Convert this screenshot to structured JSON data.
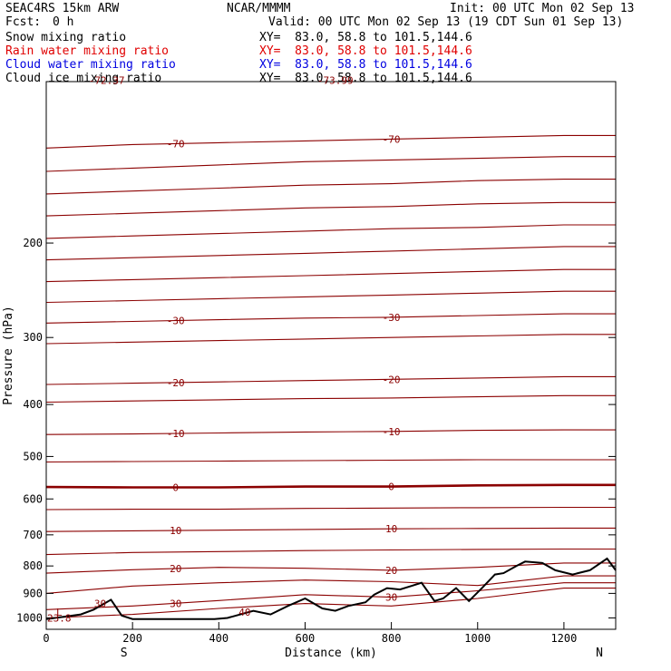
{
  "header": {
    "model": "SEAC4RS 15km ARW",
    "org": "NCAR/MMMM",
    "init": "Init: 00 UTC Mon 02 Sep 13",
    "fcst_label": "Fcst:",
    "fcst_value": "0 h",
    "valid": "Valid: 00 UTC Mon 02 Sep 13 (19 CDT Sun 01 Sep 13)"
  },
  "legend": [
    {
      "label": "Snow mixing ratio",
      "xy": "XY=  83.0, 58.8 to 101.5,144.6",
      "color": "#000000"
    },
    {
      "label": "Rain water mixing ratio",
      "xy": "XY=  83.0, 58.8 to 101.5,144.6",
      "color": "#e00000"
    },
    {
      "label": "Cloud water mixing ratio",
      "xy": "XY=  83.0, 58.8 to 101.5,144.6",
      "color": "#0000e0"
    },
    {
      "label": "Cloud ice mixing ratio",
      "xy": "XY=  83.0, 58.8 to 101.5,144.6",
      "color": "#000000"
    }
  ],
  "colors": {
    "contour": "#8b0000",
    "terrain": "#000000",
    "axis": "#000000"
  },
  "chart_data": {
    "type": "line",
    "xlabel": "Distance (km)",
    "ylabel": "Pressure (hPa)",
    "xlim": [
      0,
      1320
    ],
    "ylim": [
      1050,
      100
    ],
    "y_axis": "log-pressure, inverted",
    "xticks": [
      0,
      200,
      400,
      600,
      800,
      1000,
      1200
    ],
    "yticks": [
      200,
      300,
      400,
      500,
      600,
      700,
      800,
      900,
      1000
    ],
    "x_end_labels": {
      "left": "S",
      "right": "N"
    },
    "grid": false,
    "contour_variable": "temperature (°C)",
    "contour_interval": 5,
    "isotherms": [
      {
        "value": -70,
        "label": "-70",
        "pressure": [
          133,
          131,
          130,
          129,
          128,
          127,
          126
        ]
      },
      {
        "value": -65,
        "pressure": [
          147,
          145,
          143,
          141,
          140,
          139,
          138
        ]
      },
      {
        "value": -60,
        "pressure": [
          162,
          160,
          158,
          156,
          155,
          153,
          152
        ]
      },
      {
        "value": -55,
        "pressure": [
          178,
          176,
          174,
          172,
          171,
          169,
          168
        ]
      },
      {
        "value": -50,
        "pressure": [
          196,
          194,
          192,
          190,
          188,
          187,
          185
        ]
      },
      {
        "value": -45,
        "pressure": [
          215,
          213,
          211,
          209,
          207,
          205,
          203
        ]
      },
      {
        "value": -40,
        "pressure": [
          236,
          234,
          232,
          230,
          228,
          226,
          224
        ]
      },
      {
        "value": -35,
        "pressure": [
          258,
          256,
          254,
          252,
          250,
          248,
          246
        ]
      },
      {
        "value": -30,
        "label": "-30",
        "pressure": [
          282,
          280,
          278,
          276,
          275,
          273,
          271
        ]
      },
      {
        "value": -25,
        "pressure": [
          308,
          306,
          304,
          302,
          300,
          298,
          296
        ]
      },
      {
        "value": -20,
        "label": "-20",
        "pressure": [
          367,
          365,
          363,
          361,
          359,
          357,
          355
        ]
      },
      {
        "value": -15,
        "pressure": [
          396,
          394,
          392,
          390,
          389,
          387,
          385
        ]
      },
      {
        "value": -10,
        "label": "-10",
        "pressure": [
          455,
          454,
          452,
          450,
          449,
          447,
          446
        ]
      },
      {
        "value": -5,
        "pressure": [
          512,
          511,
          510,
          509,
          508,
          507,
          507
        ]
      },
      {
        "value": 0,
        "label": "0",
        "pressure": [
          570,
          571,
          571,
          569,
          569,
          566,
          565
        ]
      },
      {
        "value": 5,
        "pressure": [
          628,
          627,
          627,
          625,
          624,
          623,
          622
        ]
      },
      {
        "value": 10,
        "label": "10",
        "pressure": [
          690,
          688,
          686,
          684,
          682,
          681,
          680
        ]
      },
      {
        "value": 15,
        "pressure": [
          762,
          755,
          752,
          749,
          747,
          745,
          744
        ]
      },
      {
        "value": 20,
        "label": "20",
        "pressure": [
          825,
          813,
          805,
          808,
          815,
          805,
          790
        ]
      },
      {
        "value": 25,
        "pressure": [
          900,
          872,
          860,
          850,
          856,
          870,
          835
        ]
      },
      {
        "value": 30,
        "label": "30",
        "pressure": [
          965,
          950,
          928,
          905,
          915,
          890,
          860
        ]
      },
      {
        "value": 35,
        "pressure": [
          1000,
          985,
          960,
          940,
          950,
          920,
          880
        ]
      }
    ],
    "isotherm_x": [
      0,
      200,
      400,
      600,
      800,
      1000,
      1200
    ],
    "peak_labels": [
      "-72.37",
      "-73.99"
    ],
    "extra_labels": [
      "L",
      "23.8",
      "30",
      "40"
    ],
    "terrain": {
      "x": [
        0,
        40,
        80,
        110,
        150,
        175,
        200,
        300,
        390,
        420,
        480,
        520,
        560,
        600,
        640,
        670,
        700,
        740,
        760,
        790,
        820,
        850,
        870,
        900,
        920,
        950,
        980,
        1010,
        1040,
        1060,
        1090,
        1110,
        1150,
        1180,
        1220,
        1260,
        1300,
        1320
      ],
      "pressure": [
        1005,
        995,
        985,
        965,
        925,
        990,
        1005,
        1005,
        1005,
        1000,
        970,
        985,
        950,
        920,
        960,
        970,
        950,
        935,
        905,
        880,
        885,
        870,
        860,
        930,
        920,
        880,
        930,
        880,
        830,
        825,
        800,
        785,
        790,
        815,
        830,
        815,
        775,
        815
      ]
    }
  }
}
